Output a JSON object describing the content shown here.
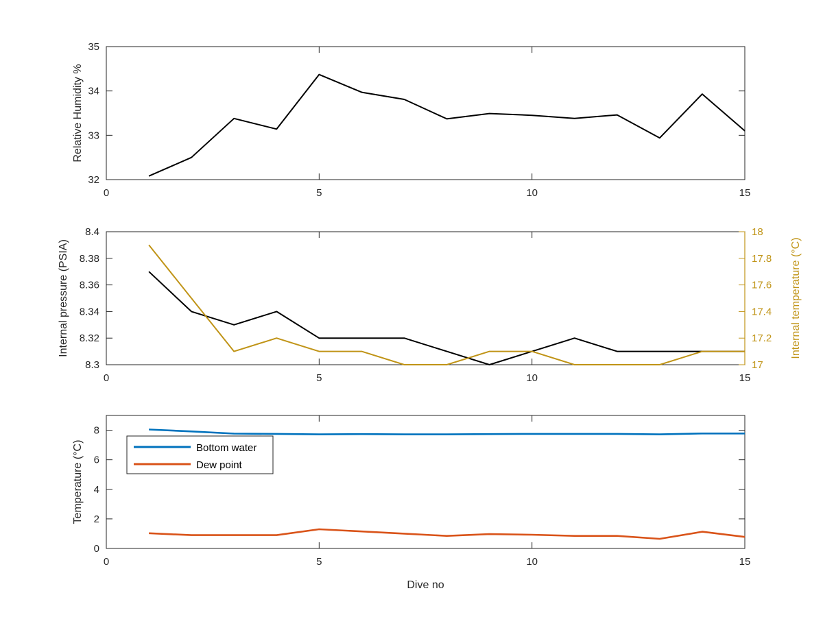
{
  "chart_data": [
    {
      "type": "line",
      "title": "",
      "xlabel": "",
      "ylabel": "Relative Humidity %",
      "xlim": [
        0,
        15
      ],
      "ylim": [
        32,
        35
      ],
      "x_ticks": [
        "0",
        "5",
        "10",
        "15"
      ],
      "y_ticks": [
        "32",
        "33",
        "34",
        "35"
      ],
      "grid": false,
      "series": [
        {
          "color": "#000000",
          "x": [
            1,
            2,
            3,
            4,
            5,
            6,
            7,
            8,
            9,
            10,
            11,
            12,
            13,
            14,
            15
          ],
          "values": [
            32.08,
            32.5,
            33.38,
            33.14,
            34.37,
            33.97,
            33.81,
            33.37,
            33.49,
            33.45,
            33.38,
            33.46,
            32.94,
            33.93,
            33.1
          ]
        }
      ]
    },
    {
      "type": "line",
      "title": "",
      "xlabel": "",
      "ylabel": "Internal pressure (PSIA)",
      "ylabel_right": "Internal temperature (°C)",
      "xlim": [
        0,
        15
      ],
      "ylim": [
        8.3,
        8.4
      ],
      "ylim_right": [
        17,
        18
      ],
      "x_ticks": [
        "0",
        "5",
        "10",
        "15"
      ],
      "y_ticks": [
        "8.3",
        "8.32",
        "8.34",
        "8.36",
        "8.38",
        "8.4"
      ],
      "y_ticks_right": [
        "17",
        "17.2",
        "17.4",
        "17.6",
        "17.8",
        "18"
      ],
      "right_axis_color": "#c09417",
      "grid": false,
      "series": [
        {
          "axis": "left",
          "color": "#000000",
          "x": [
            1,
            2,
            3,
            4,
            5,
            6,
            7,
            8,
            9,
            10,
            11,
            12,
            13,
            14,
            15
          ],
          "values": [
            8.37,
            8.34,
            8.33,
            8.34,
            8.32,
            8.32,
            8.32,
            8.31,
            8.3,
            8.31,
            8.32,
            8.31,
            8.31,
            8.31,
            8.31
          ]
        },
        {
          "axis": "right",
          "color": "#c09417",
          "x": [
            1,
            2,
            3,
            4,
            5,
            6,
            7,
            8,
            9,
            10,
            11,
            12,
            13,
            14,
            15
          ],
          "values": [
            17.9,
            17.5,
            17.1,
            17.2,
            17.1,
            17.1,
            17.0,
            17.0,
            17.1,
            17.1,
            17.0,
            17.0,
            17.0,
            17.1,
            17.1
          ]
        }
      ]
    },
    {
      "type": "line",
      "title": "",
      "xlabel": "Dive no",
      "ylabel": "Temperature (°C)",
      "xlim": [
        0,
        15
      ],
      "ylim": [
        0,
        9
      ],
      "x_ticks": [
        "0",
        "5",
        "10",
        "15"
      ],
      "y_ticks": [
        "0",
        "2",
        "4",
        "6",
        "8"
      ],
      "grid": false,
      "legend_position": "top-left",
      "series": [
        {
          "name": "Bottom water",
          "color": "#0072bd",
          "x": [
            1,
            2,
            3,
            4,
            5,
            6,
            7,
            8,
            9,
            10,
            11,
            12,
            13,
            14,
            15
          ],
          "values": [
            8.05,
            7.92,
            7.77,
            7.75,
            7.72,
            7.74,
            7.72,
            7.72,
            7.74,
            7.75,
            7.75,
            7.75,
            7.72,
            7.78,
            7.78
          ]
        },
        {
          "name": "Dew point",
          "color": "#d95319",
          "x": [
            1,
            2,
            3,
            4,
            5,
            6,
            7,
            8,
            9,
            10,
            11,
            12,
            13,
            14,
            15
          ],
          "values": [
            1.03,
            0.9,
            0.9,
            0.9,
            1.3,
            1.15,
            1.0,
            0.85,
            0.97,
            0.93,
            0.85,
            0.85,
            0.65,
            1.13,
            0.78
          ]
        }
      ]
    }
  ]
}
